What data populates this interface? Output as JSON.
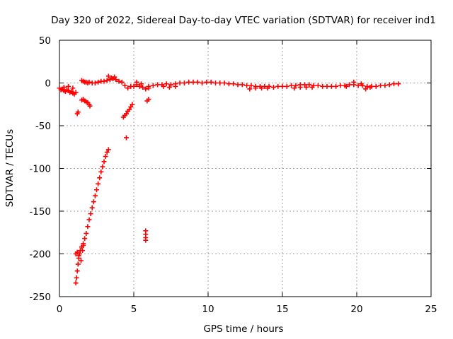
{
  "chart_data": {
    "type": "scatter",
    "title": "Day 320 of 2022, Sidereal Day-to-day VTEC variation (SDTVAR) for receiver ind1",
    "xlabel": "GPS time / hours",
    "ylabel": "SDTVAR / TECUs",
    "xlim": [
      0,
      25
    ],
    "ylim": [
      -250,
      50
    ],
    "xticks": [
      "0",
      "5",
      "10",
      "15",
      "20",
      "25"
    ],
    "yticks": [
      "50",
      "0",
      "-50",
      "-100",
      "-150",
      "-200",
      "-250"
    ],
    "grid": true,
    "marker": "+",
    "color": "#ff0000",
    "series": [
      {
        "name": "SDTVAR",
        "points": [
          [
            0.0,
            -6
          ],
          [
            0.1,
            -8
          ],
          [
            0.2,
            -7
          ],
          [
            0.3,
            -9
          ],
          [
            0.4,
            -10
          ],
          [
            0.5,
            -8
          ],
          [
            0.6,
            -9
          ],
          [
            0.7,
            -11
          ],
          [
            0.8,
            -10
          ],
          [
            0.9,
            -12
          ],
          [
            1.0,
            -13
          ],
          [
            1.1,
            -11
          ],
          [
            0.3,
            -5
          ],
          [
            0.6,
            -4
          ],
          [
            0.9,
            -6
          ],
          [
            1.2,
            -36
          ],
          [
            1.25,
            -34
          ],
          [
            1.5,
            -20
          ],
          [
            1.6,
            -19
          ],
          [
            1.7,
            -21
          ],
          [
            1.8,
            -22
          ],
          [
            1.9,
            -23
          ],
          [
            2.0,
            -25
          ],
          [
            2.05,
            -27
          ],
          [
            1.5,
            3
          ],
          [
            1.6,
            2
          ],
          [
            1.7,
            1
          ],
          [
            1.8,
            1
          ],
          [
            1.9,
            0
          ],
          [
            2.0,
            1
          ],
          [
            2.2,
            0
          ],
          [
            2.4,
            0
          ],
          [
            2.6,
            1
          ],
          [
            2.8,
            2
          ],
          [
            3.0,
            2
          ],
          [
            3.2,
            3
          ],
          [
            3.4,
            4
          ],
          [
            3.6,
            5
          ],
          [
            3.8,
            4
          ],
          [
            4.0,
            2
          ],
          [
            4.2,
            1
          ],
          [
            4.4,
            -3
          ],
          [
            4.6,
            -6
          ],
          [
            4.8,
            -4
          ],
          [
            5.0,
            -4
          ],
          [
            3.3,
            8
          ],
          [
            3.5,
            6
          ],
          [
            3.7,
            7
          ],
          [
            1.1,
            -234
          ],
          [
            1.15,
            -228
          ],
          [
            1.2,
            -220
          ],
          [
            1.25,
            -212
          ],
          [
            1.3,
            -205
          ],
          [
            1.35,
            -200
          ],
          [
            1.4,
            -196
          ],
          [
            1.5,
            -192
          ],
          [
            1.6,
            -188
          ],
          [
            1.7,
            -182
          ],
          [
            1.8,
            -176
          ],
          [
            1.9,
            -168
          ],
          [
            2.0,
            -160
          ],
          [
            2.1,
            -153
          ],
          [
            2.2,
            -146
          ],
          [
            2.3,
            -139
          ],
          [
            2.4,
            -132
          ],
          [
            2.5,
            -125
          ],
          [
            2.6,
            -118
          ],
          [
            2.7,
            -111
          ],
          [
            2.8,
            -104
          ],
          [
            2.9,
            -98
          ],
          [
            3.0,
            -92
          ],
          [
            3.1,
            -86
          ],
          [
            3.2,
            -81
          ],
          [
            3.3,
            -78
          ],
          [
            1.1,
            -200
          ],
          [
            1.2,
            -198
          ],
          [
            1.3,
            -202
          ],
          [
            1.45,
            -208
          ],
          [
            1.55,
            -196
          ],
          [
            1.6,
            -190
          ],
          [
            4.3,
            -40
          ],
          [
            4.4,
            -38
          ],
          [
            4.5,
            -36
          ],
          [
            4.6,
            -33
          ],
          [
            4.7,
            -31
          ],
          [
            4.8,
            -28
          ],
          [
            4.9,
            -25
          ],
          [
            4.5,
            -64
          ],
          [
            5.2,
            -2
          ],
          [
            5.4,
            -4
          ],
          [
            5.6,
            -5
          ],
          [
            5.8,
            -7
          ],
          [
            6.0,
            -6
          ],
          [
            5.2,
            1
          ],
          [
            5.5,
            -1
          ],
          [
            5.9,
            -21
          ],
          [
            6.0,
            -19
          ],
          [
            5.8,
            -173
          ],
          [
            5.8,
            -177
          ],
          [
            5.8,
            -181
          ],
          [
            5.8,
            -184
          ],
          [
            6.0,
            -4
          ],
          [
            6.3,
            -3
          ],
          [
            6.6,
            -2
          ],
          [
            6.9,
            -2
          ],
          [
            7.2,
            -1
          ],
          [
            7.5,
            -2
          ],
          [
            7.8,
            -1
          ],
          [
            8.1,
            0
          ],
          [
            8.4,
            0
          ],
          [
            8.7,
            1
          ],
          [
            9.0,
            1
          ],
          [
            9.3,
            1
          ],
          [
            9.6,
            0
          ],
          [
            9.9,
            1
          ],
          [
            10.2,
            1
          ],
          [
            10.5,
            0
          ],
          [
            10.8,
            0
          ],
          [
            11.1,
            0
          ],
          [
            11.4,
            -1
          ],
          [
            11.7,
            -1
          ],
          [
            12.0,
            -2
          ],
          [
            12.3,
            -2
          ],
          [
            12.6,
            -3
          ],
          [
            12.9,
            -3
          ],
          [
            13.2,
            -4
          ],
          [
            13.5,
            -4
          ],
          [
            13.8,
            -4
          ],
          [
            14.1,
            -4
          ],
          [
            14.4,
            -5
          ],
          [
            14.7,
            -4
          ],
          [
            7.0,
            -4
          ],
          [
            7.4,
            -5
          ],
          [
            7.8,
            -4
          ],
          [
            12.8,
            -7
          ],
          [
            13.2,
            -6
          ],
          [
            13.6,
            -6
          ],
          [
            14.0,
            -6
          ],
          [
            15.0,
            -4
          ],
          [
            15.3,
            -4
          ],
          [
            15.6,
            -3
          ],
          [
            15.9,
            -3
          ],
          [
            16.2,
            -2
          ],
          [
            16.5,
            -2
          ],
          [
            16.8,
            -2
          ],
          [
            17.1,
            -3
          ],
          [
            17.4,
            -3
          ],
          [
            17.7,
            -4
          ],
          [
            18.0,
            -4
          ],
          [
            18.3,
            -4
          ],
          [
            18.6,
            -4
          ],
          [
            18.9,
            -3
          ],
          [
            19.2,
            -3
          ],
          [
            19.5,
            -2
          ],
          [
            19.8,
            -2
          ],
          [
            20.1,
            -3
          ],
          [
            20.4,
            -3
          ],
          [
            20.7,
            -4
          ],
          [
            21.0,
            -4
          ],
          [
            21.3,
            -4
          ],
          [
            21.6,
            -3
          ],
          [
            21.9,
            -3
          ],
          [
            22.2,
            -2
          ],
          [
            22.5,
            -1
          ],
          [
            22.8,
            -1
          ],
          [
            15.8,
            -6
          ],
          [
            16.2,
            -5
          ],
          [
            16.6,
            -5
          ],
          [
            17.0,
            -5
          ],
          [
            19.3,
            -4
          ],
          [
            19.8,
            1
          ],
          [
            20.3,
            -1
          ],
          [
            20.6,
            -7
          ],
          [
            20.9,
            -5
          ]
        ]
      }
    ]
  }
}
